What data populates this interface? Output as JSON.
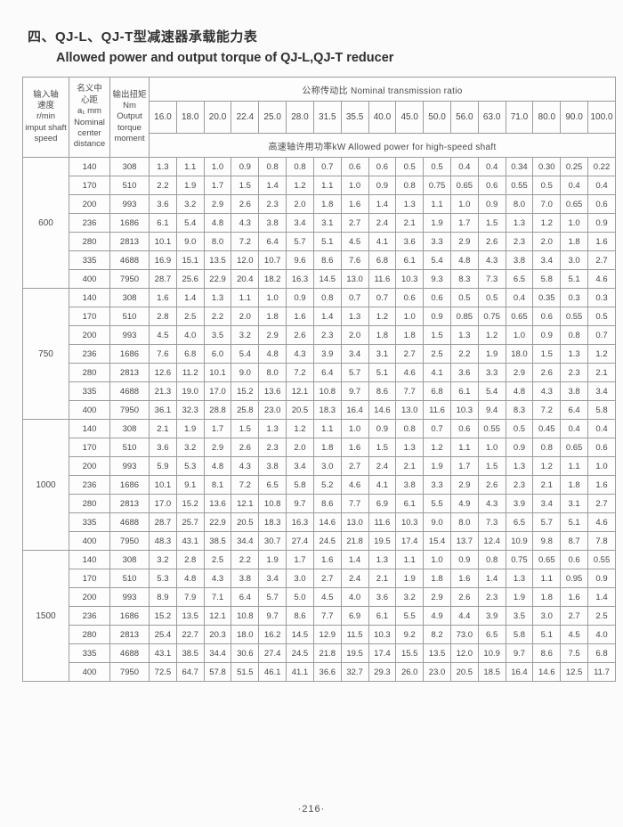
{
  "page": {
    "title_zh": "四、QJ-L、QJ-T型减速器承载能力表",
    "title_en": "Allowed power and output torque of QJ-L,QJ-T reducer",
    "page_number": "·216·"
  },
  "table": {
    "speed_header": "输入轴\n速度\nr/min\nimput shaft\nspeed",
    "distance_header": "名义中\n心距\na₁ mm\nNominal\ncenter\ndistance",
    "torque_header": "输出扭矩\nNm\nOutput\ntorque\nmoment",
    "ratio_band": "公称传动比  Nominal transmission ratio",
    "power_band": "高速轴许用功率kW  Allowed power for high-speed shaft",
    "ratios": [
      "16.0",
      "18.0",
      "20.0",
      "22.4",
      "25.0",
      "28.0",
      "31.5",
      "35.5",
      "40.0",
      "45.0",
      "50.0",
      "56.0",
      "63.0",
      "71.0",
      "80.0",
      "90.0",
      "100.0"
    ],
    "groups": [
      {
        "speed": "600",
        "rows": [
          {
            "distance": "140",
            "torque": "308",
            "values": [
              "1.3",
              "1.1",
              "1.0",
              "0.9",
              "0.8",
              "0.8",
              "0.7",
              "0.6",
              "0.6",
              "0.5",
              "0.5",
              "0.4",
              "0.4",
              "0.34",
              "0.30",
              "0.25",
              "0.22"
            ]
          },
          {
            "distance": "170",
            "torque": "510",
            "values": [
              "2.2",
              "1.9",
              "1.7",
              "1.5",
              "1.4",
              "1.2",
              "1.1",
              "1.0",
              "0.9",
              "0.8",
              "0.75",
              "0.65",
              "0.6",
              "0.55",
              "0.5",
              "0.4",
              "0.4"
            ]
          },
          {
            "distance": "200",
            "torque": "993",
            "values": [
              "3.6",
              "3.2",
              "2.9",
              "2.6",
              "2.3",
              "2.0",
              "1.8",
              "1.6",
              "1.4",
              "1.3",
              "1.1",
              "1.0",
              "0.9",
              "8.0",
              "7.0",
              "0.65",
              "0.6"
            ]
          },
          {
            "distance": "236",
            "torque": "1686",
            "values": [
              "6.1",
              "5.4",
              "4.8",
              "4.3",
              "3.8",
              "3.4",
              "3.1",
              "2.7",
              "2.4",
              "2.1",
              "1.9",
              "1.7",
              "1.5",
              "1.3",
              "1.2",
              "1.0",
              "0.9"
            ]
          },
          {
            "distance": "280",
            "torque": "2813",
            "values": [
              "10.1",
              "9.0",
              "8.0",
              "7.2",
              "6.4",
              "5.7",
              "5.1",
              "4.5",
              "4.1",
              "3.6",
              "3.3",
              "2.9",
              "2.6",
              "2.3",
              "2.0",
              "1.8",
              "1.6"
            ]
          },
          {
            "distance": "335",
            "torque": "4688",
            "values": [
              "16.9",
              "15.1",
              "13.5",
              "12.0",
              "10.7",
              "9.6",
              "8.6",
              "7.6",
              "6.8",
              "6.1",
              "5.4",
              "4.8",
              "4.3",
              "3.8",
              "3.4",
              "3.0",
              "2.7"
            ]
          },
          {
            "distance": "400",
            "torque": "7950",
            "values": [
              "28.7",
              "25.6",
              "22.9",
              "20.4",
              "18.2",
              "16.3",
              "14.5",
              "13.0",
              "11.6",
              "10.3",
              "9.3",
              "8.3",
              "7.3",
              "6.5",
              "5.8",
              "5.1",
              "4.6"
            ]
          }
        ]
      },
      {
        "speed": "750",
        "rows": [
          {
            "distance": "140",
            "torque": "308",
            "values": [
              "1.6",
              "1.4",
              "1.3",
              "1.1",
              "1.0",
              "0.9",
              "0.8",
              "0.7",
              "0.7",
              "0.6",
              "0.6",
              "0.5",
              "0.5",
              "0.4",
              "0.35",
              "0.3",
              "0.3"
            ]
          },
          {
            "distance": "170",
            "torque": "510",
            "values": [
              "2.8",
              "2.5",
              "2.2",
              "2.0",
              "1.8",
              "1.6",
              "1.4",
              "1.3",
              "1.2",
              "1.0",
              "0.9",
              "0.85",
              "0.75",
              "0.65",
              "0.6",
              "0.55",
              "0.5"
            ]
          },
          {
            "distance": "200",
            "torque": "993",
            "values": [
              "4.5",
              "4.0",
              "3.5",
              "3.2",
              "2.9",
              "2.6",
              "2.3",
              "2.0",
              "1.8",
              "1.8",
              "1.5",
              "1.3",
              "1.2",
              "1.0",
              "0.9",
              "0.8",
              "0.7"
            ]
          },
          {
            "distance": "236",
            "torque": "1686",
            "values": [
              "7.6",
              "6.8",
              "6.0",
              "5.4",
              "4.8",
              "4.3",
              "3.9",
              "3.4",
              "3.1",
              "2.7",
              "2.5",
              "2.2",
              "1.9",
              "18.0",
              "1.5",
              "1.3",
              "1.2"
            ]
          },
          {
            "distance": "280",
            "torque": "2813",
            "values": [
              "12.6",
              "11.2",
              "10.1",
              "9.0",
              "8.0",
              "7.2",
              "6.4",
              "5.7",
              "5.1",
              "4.6",
              "4.1",
              "3.6",
              "3.3",
              "2.9",
              "2.6",
              "2.3",
              "2.1"
            ]
          },
          {
            "distance": "335",
            "torque": "4688",
            "values": [
              "21.3",
              "19.0",
              "17.0",
              "15.2",
              "13.6",
              "12.1",
              "10.8",
              "9.7",
              "8.6",
              "7.7",
              "6.8",
              "6.1",
              "5.4",
              "4.8",
              "4.3",
              "3.8",
              "3.4"
            ]
          },
          {
            "distance": "400",
            "torque": "7950",
            "values": [
              "36.1",
              "32.3",
              "28.8",
              "25.8",
              "23.0",
              "20.5",
              "18.3",
              "16.4",
              "14.6",
              "13.0",
              "11.6",
              "10.3",
              "9.4",
              "8.3",
              "7.2",
              "6.4",
              "5.8"
            ]
          }
        ]
      },
      {
        "speed": "1000",
        "rows": [
          {
            "distance": "140",
            "torque": "308",
            "values": [
              "2.1",
              "1.9",
              "1.7",
              "1.5",
              "1.3",
              "1.2",
              "1.1",
              "1.0",
              "0.9",
              "0.8",
              "0.7",
              "0.6",
              "0.55",
              "0.5",
              "0.45",
              "0.4",
              "0.4"
            ]
          },
          {
            "distance": "170",
            "torque": "510",
            "values": [
              "3.6",
              "3.2",
              "2.9",
              "2.6",
              "2.3",
              "2.0",
              "1.8",
              "1.6",
              "1.5",
              "1.3",
              "1.2",
              "1.1",
              "1.0",
              "0.9",
              "0.8",
              "0.65",
              "0.6"
            ]
          },
          {
            "distance": "200",
            "torque": "993",
            "values": [
              "5.9",
              "5.3",
              "4.8",
              "4.3",
              "3.8",
              "3.4",
              "3.0",
              "2.7",
              "2.4",
              "2.1",
              "1.9",
              "1.7",
              "1.5",
              "1.3",
              "1.2",
              "1.1",
              "1.0"
            ]
          },
          {
            "distance": "236",
            "torque": "1686",
            "values": [
              "10.1",
              "9.1",
              "8.1",
              "7.2",
              "6.5",
              "5.8",
              "5.2",
              "4.6",
              "4.1",
              "3.8",
              "3.3",
              "2.9",
              "2.6",
              "2.3",
              "2.1",
              "1.8",
              "1.6"
            ]
          },
          {
            "distance": "280",
            "torque": "2813",
            "values": [
              "17.0",
              "15.2",
              "13.6",
              "12.1",
              "10.8",
              "9.7",
              "8.6",
              "7.7",
              "6.9",
              "6.1",
              "5.5",
              "4.9",
              "4.3",
              "3.9",
              "3.4",
              "3.1",
              "2.7"
            ]
          },
          {
            "distance": "335",
            "torque": "4688",
            "values": [
              "28.7",
              "25.7",
              "22.9",
              "20.5",
              "18.3",
              "16.3",
              "14.6",
              "13.0",
              "11.6",
              "10.3",
              "9.0",
              "8.0",
              "7.3",
              "6.5",
              "5.7",
              "5.1",
              "4.6"
            ]
          },
          {
            "distance": "400",
            "torque": "7950",
            "values": [
              "48.3",
              "43.1",
              "38.5",
              "34.4",
              "30.7",
              "27.4",
              "24.5",
              "21.8",
              "19.5",
              "17.4",
              "15.4",
              "13.7",
              "12.4",
              "10.9",
              "9.8",
              "8.7",
              "7.8"
            ]
          }
        ]
      },
      {
        "speed": "1500",
        "rows": [
          {
            "distance": "140",
            "torque": "308",
            "values": [
              "3.2",
              "2.8",
              "2.5",
              "2.2",
              "1.9",
              "1.7",
              "1.6",
              "1.4",
              "1.3",
              "1.1",
              "1.0",
              "0.9",
              "0.8",
              "0.75",
              "0.65",
              "0.6",
              "0.55"
            ]
          },
          {
            "distance": "170",
            "torque": "510",
            "values": [
              "5.3",
              "4.8",
              "4.3",
              "3.8",
              "3.4",
              "3.0",
              "2.7",
              "2.4",
              "2.1",
              "1.9",
              "1.8",
              "1.6",
              "1.4",
              "1.3",
              "1.1",
              "0.95",
              "0.9"
            ]
          },
          {
            "distance": "200",
            "torque": "993",
            "values": [
              "8.9",
              "7.9",
              "7.1",
              "6.4",
              "5.7",
              "5.0",
              "4.5",
              "4.0",
              "3.6",
              "3.2",
              "2.9",
              "2.6",
              "2.3",
              "1.9",
              "1.8",
              "1.6",
              "1.4"
            ]
          },
          {
            "distance": "236",
            "torque": "1686",
            "values": [
              "15.2",
              "13.5",
              "12.1",
              "10.8",
              "9.7",
              "8.6",
              "7.7",
              "6.9",
              "6.1",
              "5.5",
              "4.9",
              "4.4",
              "3.9",
              "3.5",
              "3.0",
              "2.7",
              "2.5"
            ]
          },
          {
            "distance": "280",
            "torque": "2813",
            "values": [
              "25.4",
              "22.7",
              "20.3",
              "18.0",
              "16.2",
              "14.5",
              "12.9",
              "11.5",
              "10.3",
              "9.2",
              "8.2",
              "73.0",
              "6.5",
              "5.8",
              "5.1",
              "4.5",
              "4.0"
            ]
          },
          {
            "distance": "335",
            "torque": "4688",
            "values": [
              "43.1",
              "38.5",
              "34.4",
              "30.6",
              "27.4",
              "24.5",
              "21.8",
              "19.5",
              "17.4",
              "15.5",
              "13.5",
              "12.0",
              "10.9",
              "9.7",
              "8.6",
              "7.5",
              "6.8"
            ]
          },
          {
            "distance": "400",
            "torque": "7950",
            "values": [
              "72.5",
              "64.7",
              "57.8",
              "51.5",
              "46.1",
              "41.1",
              "36.6",
              "32.7",
              "29.3",
              "26.0",
              "23.0",
              "20.5",
              "18.5",
              "16.4",
              "14.6",
              "12.5",
              "11.7"
            ]
          }
        ]
      }
    ]
  }
}
